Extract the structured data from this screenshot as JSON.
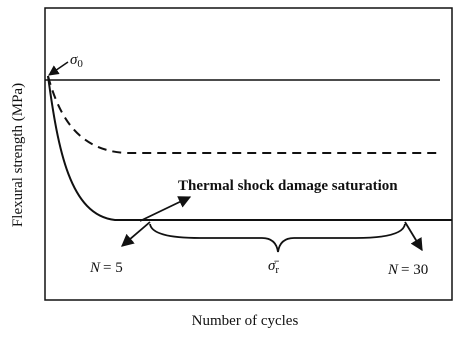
{
  "figure": {
    "y_axis_label": "Flexural strength (MPa)",
    "x_axis_label": "Number of cycles",
    "sigma0": {
      "symbol": "σ",
      "subscript": "0"
    },
    "saturation_label": "Thermal shock damage saturation",
    "n_start": {
      "variable": "N",
      "rest": "= 5"
    },
    "n_end": {
      "variable": "N",
      "rest": "= 30"
    },
    "sigma_r": {
      "symbol": "σ̄",
      "subscript": "r"
    }
  }
}
